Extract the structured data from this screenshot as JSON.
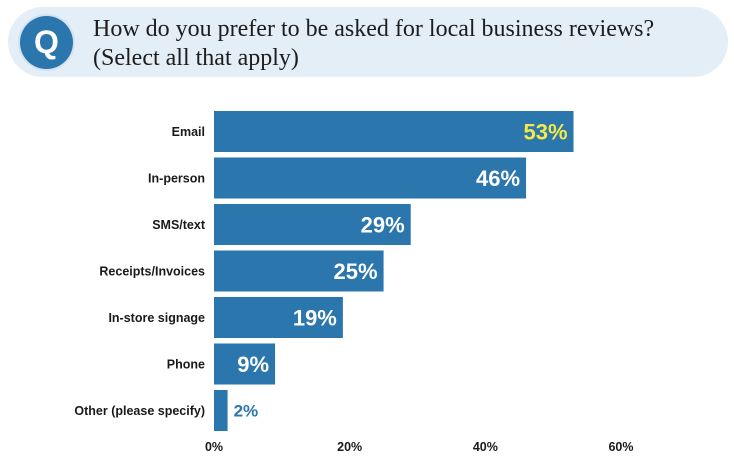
{
  "question": {
    "icon_letter": "Q",
    "text": "How do you prefer to be asked for local business reviews? (Select all that apply)"
  },
  "colors": {
    "bar": "#2a76ad",
    "banner_bg": "#e3eef7",
    "highlight_label": "#f5e94a",
    "inside_label": "#ffffff",
    "outside_label": "#2a76ad"
  },
  "chart_data": {
    "type": "bar",
    "orientation": "horizontal",
    "categories": [
      "Email",
      "In-person",
      "SMS/text",
      "Receipts/Invoices",
      "In-store signage",
      "Phone",
      "Other (please specify)"
    ],
    "values": [
      53,
      46,
      29,
      25,
      19,
      9,
      2
    ],
    "value_labels": [
      "53%",
      "46%",
      "29%",
      "25%",
      "19%",
      "9%",
      "2%"
    ],
    "xlim": [
      0,
      60
    ],
    "xticks": [
      0,
      20,
      40,
      60
    ],
    "xtick_labels": [
      "0%",
      "20%",
      "40%",
      "60%"
    ],
    "grid": false,
    "legend": "none"
  }
}
